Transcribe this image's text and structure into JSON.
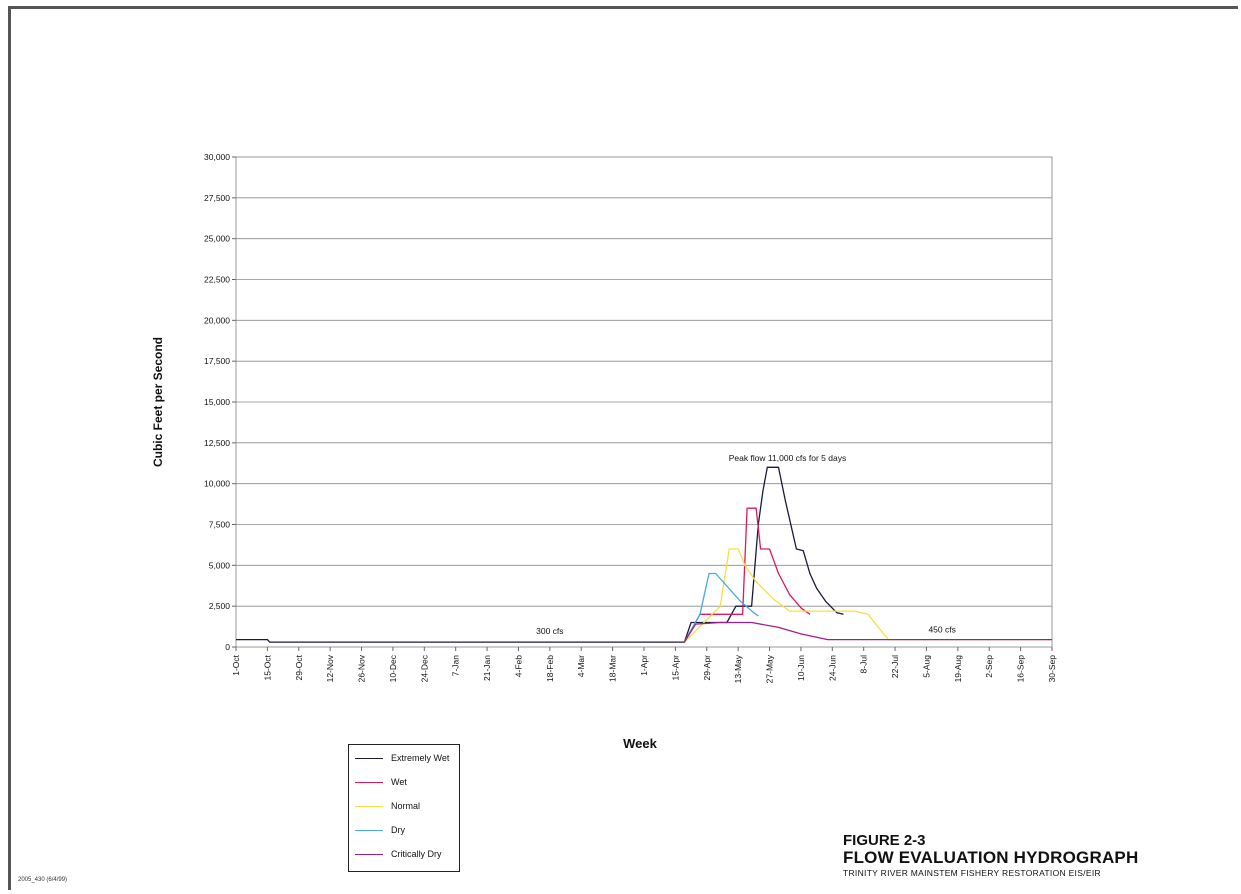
{
  "chart_data": {
    "type": "line",
    "title": "",
    "xlabel": "Week",
    "ylabel": "Cubic Feet per Second",
    "ylim": [
      0,
      30000
    ],
    "yticks": [
      "0",
      "2,500",
      "5,000",
      "7,500",
      "10,000",
      "12,500",
      "15,000",
      "17,500",
      "20,000",
      "22,500",
      "25,000",
      "27,500",
      "30,000"
    ],
    "xticks": [
      "1-Oct",
      "15-Oct",
      "29-Oct",
      "12-Nov",
      "26-Nov",
      "10-Dec",
      "24-Dec",
      "7-Jan",
      "21-Jan",
      "4-Feb",
      "18-Feb",
      "4-Mar",
      "18-Mar",
      "1-Apr",
      "15-Apr",
      "29-Apr",
      "13-May",
      "27-May",
      "10-Jun",
      "24-Jun",
      "8-Jul",
      "22-Jul",
      "5-Aug",
      "19-Aug",
      "2-Sep",
      "16-Sep",
      "30-Sep"
    ],
    "grid": true,
    "legend_position": "bottom-left",
    "annotations": [
      {
        "text": "Peak flow 11,000 cfs for 5 days",
        "x": "4-Jun",
        "y": 11400
      },
      {
        "text": "300 cfs",
        "x": "18-Feb",
        "y": 800
      },
      {
        "text": "450 cfs",
        "x": "12-Aug",
        "y": 900
      }
    ],
    "series": [
      {
        "name": "Extremely Wet",
        "color": "#1a1a3a",
        "points": [
          [
            "1-Oct",
            450
          ],
          [
            "15-Oct",
            450
          ],
          [
            "16-Oct",
            300
          ],
          [
            "19-Apr",
            300
          ],
          [
            "22-Apr",
            1500
          ],
          [
            "8-May",
            1500
          ],
          [
            "12-May",
            2500
          ],
          [
            "19-May",
            2500
          ],
          [
            "22-May",
            7500
          ],
          [
            "24-May",
            9500
          ],
          [
            "26-May",
            11000
          ],
          [
            "31-May",
            11000
          ],
          [
            "3-Jun",
            9000
          ],
          [
            "8-Jun",
            6000
          ],
          [
            "11-Jun",
            5900
          ],
          [
            "14-Jun",
            4500
          ],
          [
            "17-Jun",
            3600
          ],
          [
            "21-Jun",
            2800
          ],
          [
            "26-Jun",
            2100
          ],
          [
            "29-Jun",
            2000
          ]
        ]
      },
      {
        "name": "Wet",
        "color": "#d81b60",
        "points": [
          [
            "19-Apr",
            300
          ],
          [
            "26-Apr",
            2000
          ],
          [
            "15-May",
            2000
          ],
          [
            "17-May",
            8500
          ],
          [
            "21-May",
            8500
          ],
          [
            "23-May",
            6000
          ],
          [
            "27-May",
            6000
          ],
          [
            "31-May",
            4500
          ],
          [
            "5-Jun",
            3200
          ],
          [
            "10-Jun",
            2400
          ],
          [
            "14-Jun",
            2000
          ]
        ]
      },
      {
        "name": "Normal",
        "color": "#f5e042",
        "points": [
          [
            "19-Apr",
            300
          ],
          [
            "5-May",
            2500
          ],
          [
            "9-May",
            6000
          ],
          [
            "13-May",
            6000
          ],
          [
            "16-May",
            5000
          ],
          [
            "21-May",
            4000
          ],
          [
            "29-May",
            2900
          ],
          [
            "5-Jun",
            2200
          ],
          [
            "4-Jul",
            2200
          ],
          [
            "10-Jul",
            2000
          ],
          [
            "14-Jul",
            1300
          ],
          [
            "19-Jul",
            450
          ],
          [
            "30-Sep",
            450
          ]
        ]
      },
      {
        "name": "Dry",
        "color": "#4aa9e0",
        "points": [
          [
            "19-Apr",
            300
          ],
          [
            "26-Apr",
            2000
          ],
          [
            "30-Apr",
            4500
          ],
          [
            "3-May",
            4500
          ],
          [
            "14-May",
            2800
          ],
          [
            "20-May",
            2100
          ],
          [
            "22-May",
            1900
          ]
        ]
      },
      {
        "name": "Critically Dry",
        "color": "#a0208a",
        "points": [
          [
            "19-Apr",
            300
          ],
          [
            "24-Apr",
            1400
          ],
          [
            "5-May",
            1500
          ],
          [
            "19-May",
            1500
          ],
          [
            "31-May",
            1200
          ],
          [
            "10-Jun",
            800
          ],
          [
            "22-Jun",
            450
          ],
          [
            "30-Sep",
            450
          ]
        ]
      }
    ]
  },
  "figure": {
    "number": "FIGURE 2-3",
    "title": "FLOW EVALUATION HYDROGRAPH",
    "subtitle": "TRINITY RIVER MAINSTEM FISHERY RESTORATION EIS/EIR",
    "code": "2005_430 (6/4/99)"
  }
}
